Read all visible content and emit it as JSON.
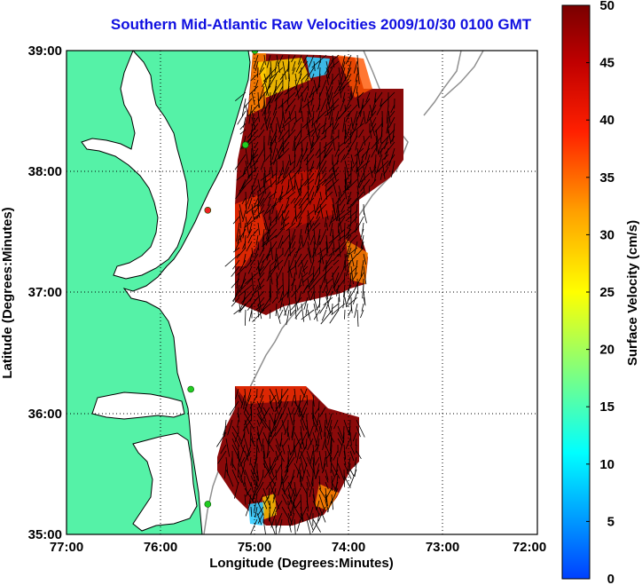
{
  "title": "Southern Mid-Atlantic Raw Velocities 2009/10/30 0100 GMT",
  "map": {
    "xlabel": "Longitude (Degrees:Minutes)",
    "ylabel": "Latitude (Degrees:Minutes)",
    "lon_range": [
      -77,
      -72
    ],
    "lat_range": [
      35,
      39
    ],
    "x_ticks": [
      "77:00",
      "76:00",
      "75:00",
      "74:00",
      "73:00",
      "72:00"
    ],
    "y_ticks": [
      "39:00",
      "38:00",
      "37:00",
      "36:00",
      "35:00"
    ],
    "grid": "dotted",
    "land_color": "#55f2a7",
    "coast_color": "#000000",
    "isobath_color": "#909090"
  },
  "colorbar": {
    "label": "Surface Velocity (cm/s)",
    "ticks": [
      "50",
      "45",
      "40",
      "35",
      "30",
      "25",
      "20",
      "15",
      "10",
      "5",
      "0"
    ],
    "min": 0,
    "max": 50,
    "colormap": "jet"
  },
  "stations": [
    {
      "lon": -75.0,
      "lat": 39.0,
      "color": "#22cc22"
    },
    {
      "lon": -75.1,
      "lat": 38.22,
      "color": "#22cc22"
    },
    {
      "lon": -75.5,
      "lat": 37.68,
      "color": "#ee2222"
    },
    {
      "lon": -75.68,
      "lat": 36.2,
      "color": "#22cc22"
    },
    {
      "lon": -75.5,
      "lat": 35.25,
      "color": "#22cc22"
    }
  ]
}
